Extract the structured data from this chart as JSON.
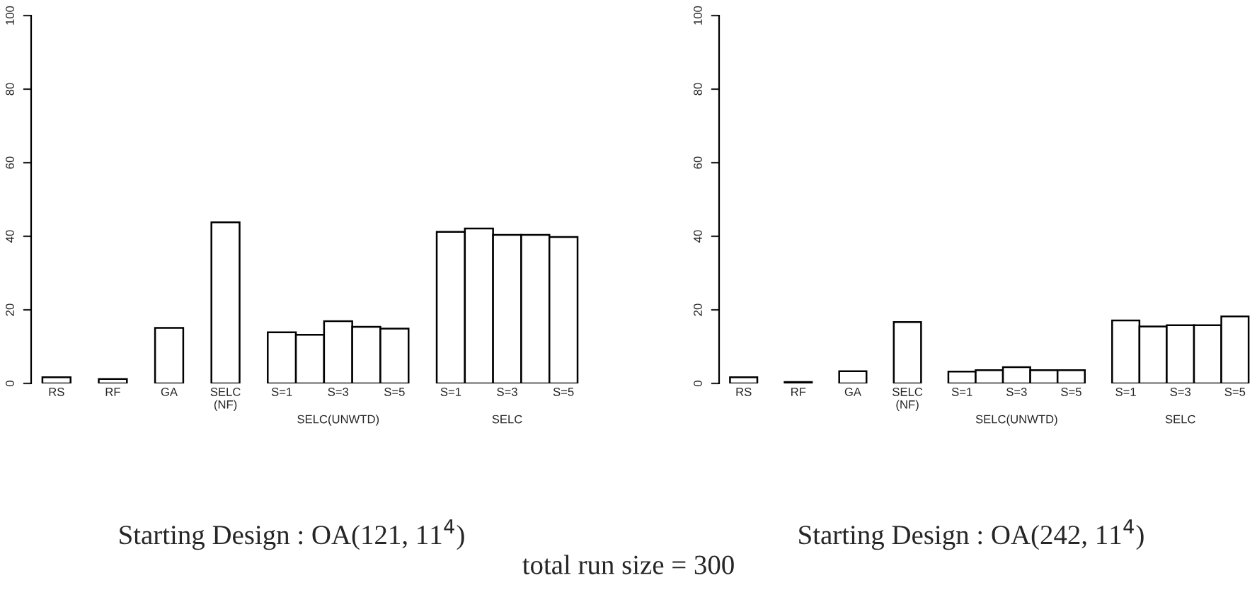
{
  "chart_data": [
    {
      "type": "bar",
      "title": "Starting Design : OA(121, 11$^{4}$)",
      "categories": [
        "RS",
        null,
        "RF",
        null,
        "GA",
        null,
        "SELC\n(NF)",
        null,
        "S=1",
        null,
        "S=3",
        null,
        "S=5",
        null,
        "S=1",
        null,
        "S=3",
        null,
        "S=5"
      ],
      "series": [
        {
          "color": "#ffffff",
          "values": [
            1.7,
            null,
            1.2,
            null,
            15.1,
            null,
            43.8,
            null,
            13.9,
            13.2,
            16.9,
            15.4,
            14.9,
            null,
            41.2,
            42.1,
            40.4,
            40.4,
            39.8
          ]
        }
      ],
      "ylim": [
        0,
        100
      ],
      "yticks": [
        0,
        20,
        40,
        60,
        80,
        100
      ],
      "grid": false,
      "legend": false,
      "annotations": [
        "SELC(UNWTD)",
        "SELC",
        "total run size = 300"
      ]
    },
    {
      "type": "bar",
      "title": "Starting Design : OA(242, 11$^{4}$)",
      "categories": [
        "RS",
        null,
        "RF",
        null,
        "GA",
        null,
        "SELC\n(NF)",
        null,
        "S=1",
        null,
        "S=3",
        null,
        "S=5",
        null,
        "S=1",
        null,
        "S=3",
        null,
        "S=5"
      ],
      "series": [
        {
          "color": "#ffffff",
          "values": [
            1.7,
            null,
            0.4,
            null,
            3.3,
            null,
            16.7,
            null,
            3.2,
            3.6,
            4.4,
            3.6,
            3.6,
            null,
            17.1,
            15.5,
            15.8,
            15.8,
            18.2
          ]
        }
      ],
      "ylim": [
        0,
        100
      ],
      "yticks": [
        0,
        20,
        40,
        60,
        80,
        100
      ],
      "grid": false,
      "legend": false,
      "annotations": [
        "SELC(UNWTD)",
        "SELC"
      ]
    }
  ]
}
